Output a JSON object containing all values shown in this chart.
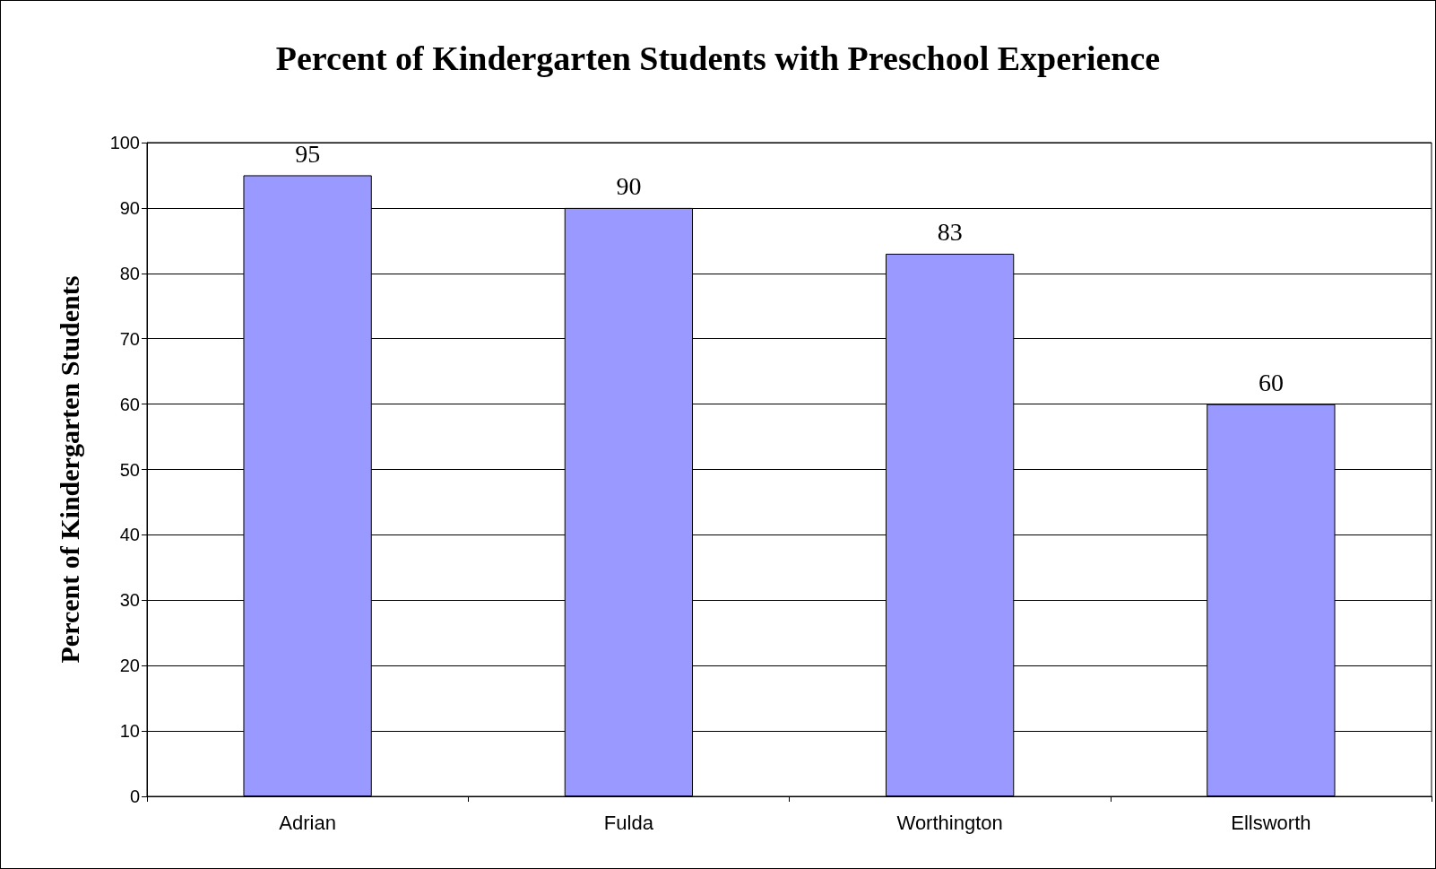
{
  "chart_data": {
    "type": "bar",
    "title": "Percent of Kindergarten Students with Preschool Experience",
    "ylabel": "Percent of Kindergarten Students",
    "categories": [
      "Adrian",
      "Fulda",
      "Worthington",
      "Ellsworth"
    ],
    "values": [
      95,
      90,
      83,
      60
    ],
    "color": "#9999ff",
    "ylim": [
      0,
      100
    ],
    "yticks": [
      0,
      10,
      20,
      30,
      40,
      50,
      60,
      70,
      80,
      90,
      100
    ],
    "grid": "y",
    "data_labels": true
  }
}
